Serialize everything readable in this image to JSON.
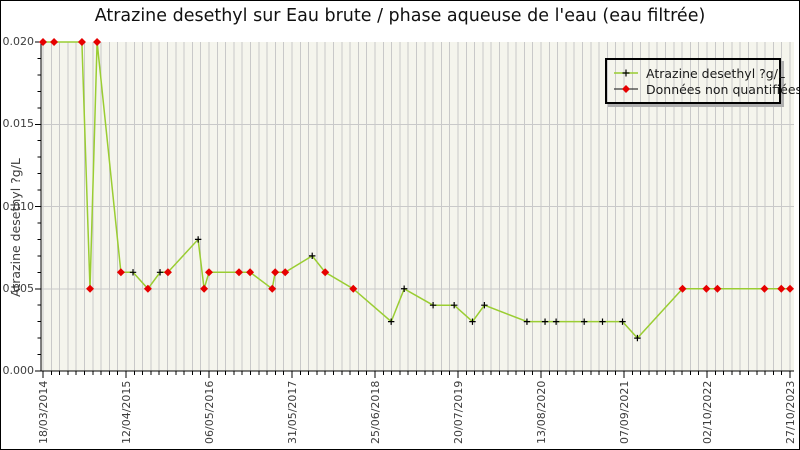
{
  "colors": {
    "line": "#9acd32",
    "non_quantified": "#e60000",
    "quantified_marker": "#000000",
    "plot_bg": "#f5f5ed",
    "grid": "#c9c9c9",
    "axis": "#000000",
    "text": "#3d3d3d"
  },
  "chart_data": {
    "type": "line",
    "title": "Atrazine desethyl sur Eau brute / phase aqueuse de l'eau (eau filtrée)",
    "xlabel": "",
    "ylabel": "Atrazine desethyl ?g/L",
    "ylim": [
      0,
      0.02
    ],
    "y_ticks": [
      "0.000",
      "0.005",
      "0.010",
      "0.015",
      "0.020"
    ],
    "y_major_step": 0.005,
    "y_minor_step": 0.001,
    "x_tick_labels": [
      "18/03/2014",
      "12/04/2015",
      "06/05/2016",
      "31/05/2017",
      "25/06/2018",
      "20/07/2019",
      "13/08/2020",
      "07/09/2021",
      "02/10/2022",
      "27/10/2023"
    ],
    "x_minor_per_major": 10,
    "grid": "vertical minor gridlines full height; horizontal gridlines at 0.005, 0.010, 0.015",
    "legend": {
      "position": "top-right",
      "items": [
        {
          "label": "Atrazine desethyl ?g/L",
          "marker": "black-plus",
          "line_color": "#9acd32"
        },
        {
          "label": "Données non quantifiées",
          "marker": "red-diamond",
          "line_color": "#3a3a3a"
        }
      ]
    },
    "points": [
      {
        "date": "18/03/2014",
        "value": 0.02,
        "quantified": false
      },
      {
        "date": "09/05/2014",
        "value": 0.02,
        "quantified": false
      },
      {
        "date": "17/09/2014",
        "value": 0.02,
        "quantified": false
      },
      {
        "date": "25/10/2014",
        "value": 0.005,
        "quantified": false
      },
      {
        "date": "27/11/2014",
        "value": 0.02,
        "quantified": false
      },
      {
        "date": "19/03/2015",
        "value": 0.006,
        "quantified": false
      },
      {
        "date": "15/05/2015",
        "value": 0.006,
        "quantified": true
      },
      {
        "date": "24/07/2015",
        "value": 0.005,
        "quantified": false
      },
      {
        "date": "19/09/2015",
        "value": 0.006,
        "quantified": true
      },
      {
        "date": "26/10/2015",
        "value": 0.006,
        "quantified": false
      },
      {
        "date": "16/03/2016",
        "value": 0.008,
        "quantified": true
      },
      {
        "date": "13/04/2016",
        "value": 0.005,
        "quantified": false
      },
      {
        "date": "06/05/2016",
        "value": 0.006,
        "quantified": false
      },
      {
        "date": "24/09/2016",
        "value": 0.006,
        "quantified": false
      },
      {
        "date": "15/11/2016",
        "value": 0.006,
        "quantified": false
      },
      {
        "date": "27/02/2017",
        "value": 0.005,
        "quantified": false
      },
      {
        "date": "13/03/2017",
        "value": 0.006,
        "quantified": false
      },
      {
        "date": "29/04/2017",
        "value": 0.006,
        "quantified": false
      },
      {
        "date": "03/09/2017",
        "value": 0.007,
        "quantified": true
      },
      {
        "date": "03/11/2017",
        "value": 0.006,
        "quantified": false
      },
      {
        "date": "15/03/2018",
        "value": 0.005,
        "quantified": false
      },
      {
        "date": "09/09/2018",
        "value": 0.003,
        "quantified": true
      },
      {
        "date": "09/11/2018",
        "value": 0.005,
        "quantified": true
      },
      {
        "date": "25/03/2019",
        "value": 0.004,
        "quantified": true
      },
      {
        "date": "02/07/2019",
        "value": 0.004,
        "quantified": true
      },
      {
        "date": "26/09/2019",
        "value": 0.003,
        "quantified": true
      },
      {
        "date": "21/11/2019",
        "value": 0.004,
        "quantified": true
      },
      {
        "date": "08/06/2020",
        "value": 0.003,
        "quantified": true
      },
      {
        "date": "01/09/2020",
        "value": 0.003,
        "quantified": true
      },
      {
        "date": "23/10/2020",
        "value": 0.003,
        "quantified": true
      },
      {
        "date": "04/03/2021",
        "value": 0.003,
        "quantified": true
      },
      {
        "date": "29/05/2021",
        "value": 0.003,
        "quantified": true
      },
      {
        "date": "31/08/2021",
        "value": 0.003,
        "quantified": true
      },
      {
        "date": "09/11/2021",
        "value": 0.002,
        "quantified": true
      },
      {
        "date": "09/06/2022",
        "value": 0.005,
        "quantified": false
      },
      {
        "date": "29/09/2022",
        "value": 0.005,
        "quantified": false
      },
      {
        "date": "20/11/2022",
        "value": 0.005,
        "quantified": false
      },
      {
        "date": "29/06/2023",
        "value": 0.005,
        "quantified": false
      },
      {
        "date": "16/09/2023",
        "value": 0.005,
        "quantified": false
      },
      {
        "date": "27/10/2023",
        "value": 0.005,
        "quantified": false
      }
    ]
  }
}
